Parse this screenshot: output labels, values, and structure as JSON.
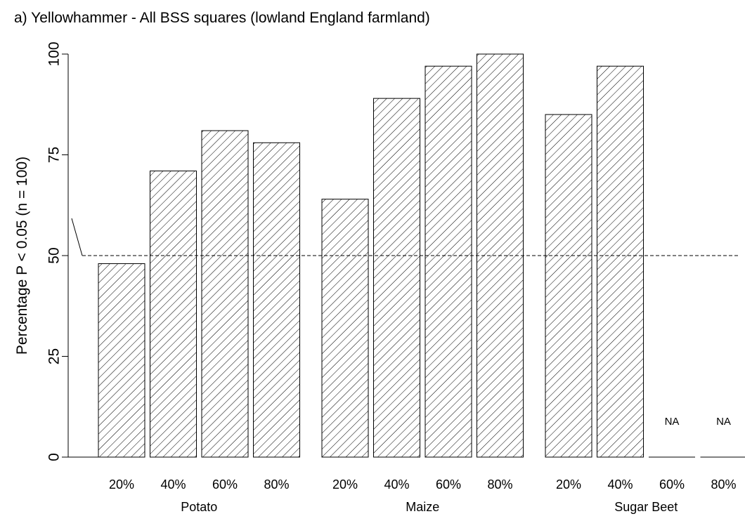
{
  "chart_data": {
    "type": "bar",
    "title": "a) Yellowhammer - All BSS squares (lowland England farmland)",
    "ylabel": "Percentage P < 0.05 (n = 100)",
    "xlabel": "",
    "ylim": [
      0,
      100
    ],
    "yticks": [
      0,
      25,
      50,
      75,
      100
    ],
    "reference_line": 50,
    "fill_pattern": "diagonal-hatch",
    "groups": [
      {
        "name": "Potato",
        "categories": [
          "20%",
          "40%",
          "60%",
          "80%"
        ],
        "values": [
          48,
          71,
          81,
          78
        ]
      },
      {
        "name": "Maize",
        "categories": [
          "20%",
          "40%",
          "60%",
          "80%"
        ],
        "values": [
          64,
          89,
          97,
          100
        ]
      },
      {
        "name": "Sugar Beet",
        "categories": [
          "20%",
          "40%",
          "60%",
          "80%"
        ],
        "values": [
          85,
          97,
          null,
          null
        ],
        "missing_label": "NA"
      }
    ]
  }
}
